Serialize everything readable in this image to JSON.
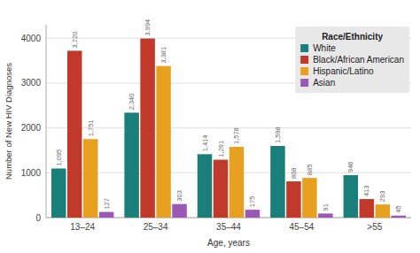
{
  "chart_data": {
    "type": "bar",
    "categories": [
      "13–24",
      "25–34",
      "35–44",
      "45–54",
      ">55"
    ],
    "series": [
      {
        "name": "White",
        "color": "#1a7f7a",
        "values": [
          1095,
          2340,
          1414,
          1598,
          946
        ],
        "value_labels": [
          "1,095",
          "2,340",
          "1,414",
          "1,598",
          "946"
        ]
      },
      {
        "name": "Black/African American",
        "color": "#c0392b",
        "values": [
          3720,
          3994,
          1291,
          808,
          413
        ],
        "value_labels": [
          "3,720",
          "3,994",
          "1,291",
          "808",
          "413"
        ]
      },
      {
        "name": "Hispanic/Latino",
        "color": "#e8a020",
        "values": [
          1751,
          3381,
          1578,
          885,
          293
        ],
        "value_labels": [
          "1,751",
          "3,381",
          "1,578",
          "885",
          "293"
        ]
      },
      {
        "name": "Asian",
        "color": "#9b59b6",
        "values": [
          127,
          303,
          175,
          91,
          45
        ],
        "value_labels": [
          "127",
          "303",
          "175",
          "91",
          "45"
        ]
      }
    ],
    "xlabel": "Age, years",
    "ylabel": "Number of New HIV Diagnoses",
    "legend_title": "Race/Ethnicity",
    "legend": "upper right",
    "ylim": [
      0,
      4300
    ],
    "yticks": [
      0,
      1000,
      2000,
      3000,
      4000
    ],
    "grid": true,
    "data_labels": true
  }
}
